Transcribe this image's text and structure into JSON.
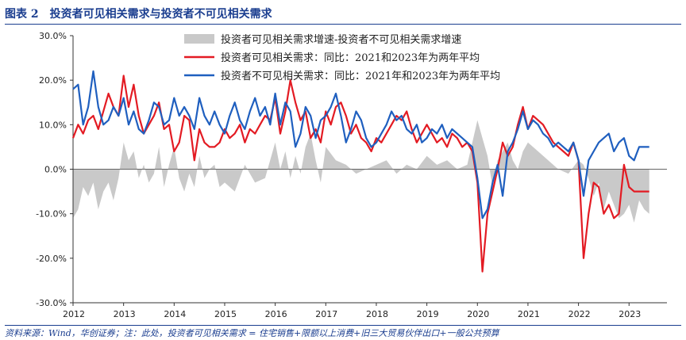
{
  "figure": {
    "label": "图表 2",
    "title": "投资者可见相关需求与投资者不可见相关需求",
    "source": "资料来源：Wind，华创证券；注：此处，投资者可见相关需求 = 住宅销售+限额以上消费+旧三大贸易伙伴出口+一般公共预算"
  },
  "colors": {
    "red": "#e31b23",
    "blue": "#1f5fbf",
    "gray": "#c9c9c9",
    "header": "#1a3d8f"
  },
  "chart_data": {
    "type": "line",
    "title": "投资者可见相关需求与投资者不可见相关需求",
    "ylim": [
      -30,
      30
    ],
    "yticks": [
      30,
      20,
      10,
      0,
      -10,
      -20,
      -30
    ],
    "ytick_labels": [
      "30.0%",
      "20.0%",
      "10.0%",
      "0.0%",
      "-10.0%",
      "-20.0%",
      "-30.0%"
    ],
    "xlim": [
      2012.0,
      2023.75
    ],
    "xticks": [
      2012,
      2013,
      2014,
      2015,
      2016,
      2017,
      2018,
      2019,
      2020,
      2021,
      2022,
      2023
    ],
    "xtick_labels": [
      "2012",
      "2013",
      "2014",
      "2015",
      "2016",
      "2017",
      "2018",
      "2019",
      "2020",
      "2021",
      "2022",
      "2023"
    ],
    "legend": [
      "投资者可见相关需求增速-投资者不可见相关需求增速",
      "投资者可见相关需求：同比：2021和2023年为两年平均",
      "投资者不可见相关需求：同比：2021年和2023年为两年平均"
    ],
    "legend_position": "top-right",
    "series": [
      {
        "name": "投资者可见相关需求增速-投资者不可见相关需求增速",
        "kind": "area",
        "x": [
          2012.0,
          2012.1,
          2012.2,
          2012.3,
          2012.4,
          2012.5,
          2012.6,
          2012.7,
          2012.8,
          2012.9,
          2013.0,
          2013.1,
          2013.2,
          2013.3,
          2013.4,
          2013.5,
          2013.6,
          2013.7,
          2013.8,
          2013.9,
          2014.0,
          2014.1,
          2014.2,
          2014.3,
          2014.4,
          2014.5,
          2014.6,
          2014.7,
          2014.8,
          2014.9,
          2015.0,
          2015.2,
          2015.4,
          2015.6,
          2015.8,
          2016.0,
          2016.1,
          2016.2,
          2016.3,
          2016.4,
          2016.5,
          2016.6,
          2016.7,
          2016.8,
          2016.9,
          2017.0,
          2017.2,
          2017.4,
          2017.6,
          2017.8,
          2018.0,
          2018.2,
          2018.4,
          2018.6,
          2018.8,
          2019.0,
          2019.2,
          2019.4,
          2019.6,
          2019.8,
          2020.0,
          2020.1,
          2020.2,
          2020.3,
          2020.4,
          2020.5,
          2020.6,
          2020.7,
          2020.8,
          2020.9,
          2021.0,
          2021.2,
          2021.4,
          2021.6,
          2021.8,
          2022.0,
          2022.1,
          2022.2,
          2022.3,
          2022.4,
          2022.5,
          2022.6,
          2022.7,
          2022.8,
          2022.9,
          2023.0,
          2023.1,
          2023.2,
          2023.3,
          2023.4
        ],
        "values": [
          -11,
          -9,
          -4,
          -6,
          -3,
          -9,
          -5,
          -3,
          -7,
          -2,
          6,
          2,
          4,
          -2,
          1,
          -3,
          -1,
          5,
          -4,
          1,
          5,
          -2,
          -5,
          -1,
          -4,
          3,
          -2,
          0,
          1,
          -4,
          -3,
          -5,
          1,
          -3,
          -2,
          6,
          0,
          4,
          -2,
          3,
          -1,
          5,
          8,
          2,
          -3,
          5,
          2,
          1,
          -1,
          0,
          1,
          2,
          -1,
          1,
          0,
          3,
          1,
          2,
          0,
          1,
          11,
          7,
          3,
          -4,
          2,
          4,
          6,
          2,
          0,
          4,
          6,
          4,
          2,
          0,
          -1,
          2,
          1,
          -2,
          -6,
          -3,
          -9,
          -5,
          -8,
          -11,
          -10,
          -8,
          -12,
          -7,
          -9,
          -10
        ]
      },
      {
        "name": "投资者可见相关需求：同比：2021和2023年为两年平均",
        "kind": "line",
        "x": [
          2012.0,
          2012.1,
          2012.2,
          2012.3,
          2012.4,
          2012.5,
          2012.6,
          2012.7,
          2012.8,
          2012.9,
          2013.0,
          2013.1,
          2013.2,
          2013.3,
          2013.4,
          2013.5,
          2013.6,
          2013.7,
          2013.8,
          2013.9,
          2014.0,
          2014.1,
          2014.2,
          2014.3,
          2014.4,
          2014.5,
          2014.6,
          2014.7,
          2014.8,
          2014.9,
          2015.0,
          2015.1,
          2015.2,
          2015.3,
          2015.4,
          2015.5,
          2015.6,
          2015.7,
          2015.8,
          2015.9,
          2016.0,
          2016.1,
          2016.2,
          2016.3,
          2016.4,
          2016.5,
          2016.6,
          2016.7,
          2016.8,
          2016.9,
          2017.0,
          2017.1,
          2017.2,
          2017.3,
          2017.4,
          2017.5,
          2017.6,
          2017.7,
          2017.8,
          2017.9,
          2018.0,
          2018.1,
          2018.2,
          2018.3,
          2018.4,
          2018.5,
          2018.6,
          2018.7,
          2018.8,
          2018.9,
          2019.0,
          2019.1,
          2019.2,
          2019.3,
          2019.4,
          2019.5,
          2019.6,
          2019.7,
          2019.8,
          2019.9,
          2020.0,
          2020.1,
          2020.2,
          2020.3,
          2020.4,
          2020.5,
          2020.6,
          2020.7,
          2020.8,
          2020.9,
          2021.0,
          2021.1,
          2021.2,
          2021.3,
          2021.4,
          2021.5,
          2021.6,
          2021.7,
          2021.8,
          2021.9,
          2022.0,
          2022.1,
          2022.2,
          2022.3,
          2022.4,
          2022.5,
          2022.6,
          2022.7,
          2022.8,
          2022.9,
          2023.0,
          2023.1,
          2023.2,
          2023.3,
          2023.4
        ],
        "values": [
          7,
          10,
          8,
          11,
          12,
          9,
          13,
          17,
          14,
          12,
          21,
          14,
          19,
          12,
          8,
          10,
          12,
          15,
          9,
          10,
          4,
          6,
          12,
          11,
          2,
          9,
          6,
          5,
          5,
          6,
          9,
          7,
          8,
          10,
          6,
          9,
          8,
          10,
          12,
          11,
          16,
          8,
          13,
          20,
          15,
          11,
          13,
          7,
          9,
          6,
          13,
          10,
          14,
          15,
          12,
          8,
          10,
          7,
          6,
          4,
          7,
          6,
          8,
          10,
          12,
          11,
          13,
          9,
          6,
          8,
          10,
          8,
          6,
          7,
          5,
          8,
          7,
          5,
          6,
          4,
          -3,
          -23,
          -10,
          -5,
          0,
          6,
          3,
          5,
          10,
          14,
          9,
          12,
          11,
          10,
          8,
          6,
          5,
          4,
          3,
          6,
          2,
          -20,
          -10,
          -3,
          -4,
          -10,
          -8,
          -11,
          -10,
          1,
          -4,
          -5,
          -5,
          -5,
          -5
        ]
      },
      {
        "name": "投资者不可见相关需求：同比：2021年和2023年为两年平均",
        "kind": "line",
        "x": [
          2012.0,
          2012.1,
          2012.2,
          2012.3,
          2012.4,
          2012.5,
          2012.6,
          2012.7,
          2012.8,
          2012.9,
          2013.0,
          2013.1,
          2013.2,
          2013.3,
          2013.4,
          2013.5,
          2013.6,
          2013.7,
          2013.8,
          2013.9,
          2014.0,
          2014.1,
          2014.2,
          2014.3,
          2014.4,
          2014.5,
          2014.6,
          2014.7,
          2014.8,
          2014.9,
          2015.0,
          2015.1,
          2015.2,
          2015.3,
          2015.4,
          2015.5,
          2015.6,
          2015.7,
          2015.8,
          2015.9,
          2016.0,
          2016.1,
          2016.2,
          2016.3,
          2016.4,
          2016.5,
          2016.6,
          2016.7,
          2016.8,
          2016.9,
          2017.0,
          2017.1,
          2017.2,
          2017.3,
          2017.4,
          2017.5,
          2017.6,
          2017.7,
          2017.8,
          2017.9,
          2018.0,
          2018.1,
          2018.2,
          2018.3,
          2018.4,
          2018.5,
          2018.6,
          2018.7,
          2018.8,
          2018.9,
          2019.0,
          2019.1,
          2019.2,
          2019.3,
          2019.4,
          2019.5,
          2019.6,
          2019.7,
          2019.8,
          2019.9,
          2020.0,
          2020.1,
          2020.2,
          2020.3,
          2020.4,
          2020.5,
          2020.6,
          2020.7,
          2020.8,
          2020.9,
          2021.0,
          2021.1,
          2021.2,
          2021.3,
          2021.4,
          2021.5,
          2021.6,
          2021.7,
          2021.8,
          2021.9,
          2022.0,
          2022.1,
          2022.2,
          2022.3,
          2022.4,
          2022.5,
          2022.6,
          2022.7,
          2022.8,
          2022.9,
          2023.0,
          2023.1,
          2023.2,
          2023.3,
          2023.4
        ],
        "values": [
          18,
          19,
          10,
          14,
          22,
          14,
          10,
          11,
          14,
          12,
          16,
          10,
          13,
          9,
          8,
          11,
          15,
          14,
          10,
          11,
          16,
          12,
          14,
          12,
          9,
          16,
          12,
          10,
          13,
          10,
          8,
          12,
          15,
          11,
          9,
          13,
          16,
          12,
          14,
          10,
          17,
          10,
          15,
          13,
          5,
          8,
          14,
          12,
          7,
          11,
          12,
          14,
          17,
          12,
          6,
          9,
          13,
          11,
          7,
          5,
          6,
          8,
          10,
          13,
          11,
          12,
          9,
          8,
          10,
          6,
          7,
          9,
          8,
          10,
          7,
          9,
          8,
          7,
          6,
          5,
          -2,
          -11,
          -9,
          -3,
          1,
          -6,
          4,
          6,
          9,
          13,
          9,
          11,
          10,
          8,
          7,
          5,
          6,
          5,
          4,
          6,
          2,
          -6,
          2,
          4,
          6,
          7,
          8,
          4,
          6,
          7,
          3,
          2,
          5,
          5,
          5
        ]
      }
    ]
  }
}
